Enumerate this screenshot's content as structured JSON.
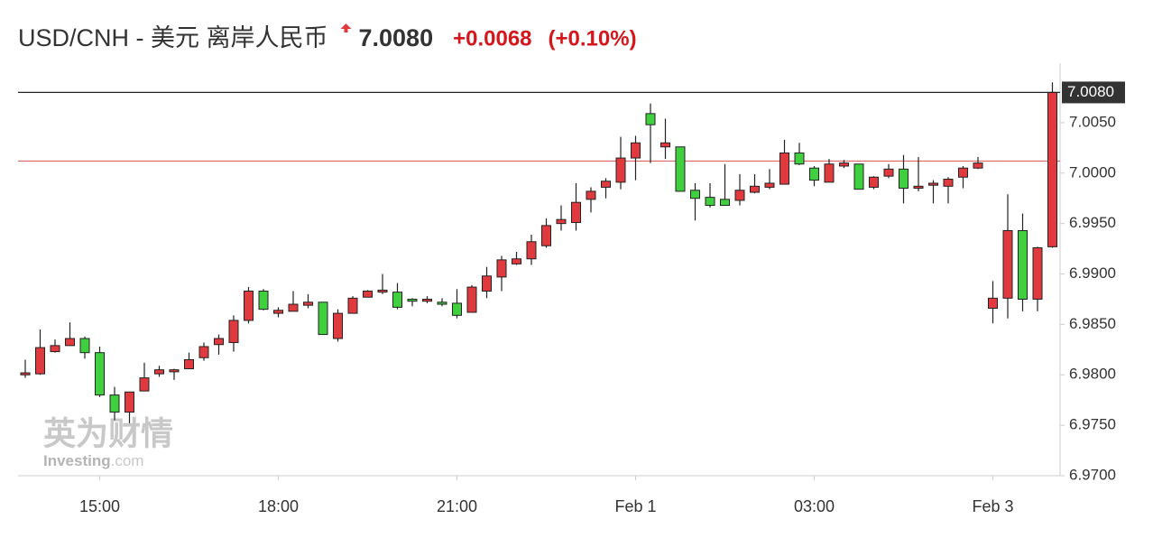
{
  "chart_data": {
    "type": "candlestick",
    "title": "USD/CNH - 美元 离岸人民币",
    "price": {
      "value": 7.008,
      "label": "7.0080"
    },
    "change": "+0.0068",
    "change_percent": "(+0.10%)",
    "watermark": [
      "英为财情",
      "Investing",
      ".com"
    ],
    "up_color": "#e0393e",
    "down_color": "#3fcf3f",
    "reference_line": 7.0012,
    "categories": [
      null,
      null,
      null,
      null,
      null,
      "15:00",
      null,
      null,
      null,
      null,
      null,
      null,
      null,
      null,
      null,
      null,
      null,
      "18:00",
      null,
      null,
      null,
      null,
      null,
      null,
      null,
      null,
      null,
      null,
      null,
      "21:00",
      null,
      null,
      null,
      null,
      null,
      null,
      null,
      null,
      null,
      null,
      null,
      "Feb 1",
      null,
      null,
      null,
      null,
      null,
      null,
      null,
      null,
      null,
      null,
      null,
      "03:00",
      null,
      null,
      null,
      null,
      null,
      null,
      null,
      null,
      null,
      null,
      null,
      "Feb 3",
      null,
      null,
      null,
      null
    ],
    "open": [
      6.98,
      6.9801,
      6.9823,
      6.9829,
      6.9836,
      6.9822,
      6.978,
      6.9763,
      6.9784,
      6.9801,
      6.9803,
      6.9806,
      6.9817,
      6.983,
      6.9832,
      6.9854,
      6.9883,
      6.9861,
      6.9863,
      6.9869,
      6.9872,
      6.9836,
      6.9861,
      6.9877,
      6.9882,
      6.9882,
      6.9875,
      6.9873,
      6.9872,
      6.9871,
      6.9862,
      6.9883,
      6.9897,
      6.991,
      6.9915,
      6.9928,
      6.995,
      6.9951,
      6.9974,
      6.9986,
      6.9991,
      7.0015,
      7.0059,
      7.0026,
      7.0026,
      6.9983,
      6.9976,
      6.9974,
      6.9973,
      6.9981,
      6.9986,
      6.9989,
      7.002,
      7.0005,
      6.9991,
      7.0007,
      7.0009,
      6.9986,
      6.9997,
      7.0004,
      6.9985,
      6.9988,
      6.9987,
      6.9996,
      7.0005,
      6.9866,
      6.9876,
      6.9943,
      6.9875,
      6.9927
    ],
    "high": [
      6.9815,
      6.9845,
      6.9835,
      6.9852,
      6.9838,
      6.9828,
      6.9788,
      6.9783,
      6.9812,
      6.9809,
      6.9806,
      6.9822,
      6.9832,
      6.984,
      6.9859,
      6.9887,
      6.9885,
      6.9867,
      6.9883,
      6.988,
      6.9872,
      6.9865,
      6.9878,
      6.9884,
      6.99,
      6.9891,
      6.9876,
      6.9878,
      6.9876,
      6.9885,
      6.9889,
      6.9907,
      6.9918,
      6.9922,
      6.9939,
      6.9955,
      6.9968,
      6.999,
      6.9986,
      6.9995,
      7.0036,
      7.0037,
      7.0069,
      7.0054,
      7.0026,
      6.999,
      6.999,
      7.0009,
      6.9999,
      6.9999,
      7.0004,
      7.0033,
      7.003,
      7.0007,
      7.0014,
      7.0013,
      7.0009,
      6.9997,
      7.0009,
      7.0018,
      7.0016,
      6.9993,
      6.9996,
      7.0007,
      7.0016,
      6.9893,
      6.9979,
      6.996,
      6.9927,
      7.009
    ],
    "low": [
      6.9797,
      6.98,
      6.9822,
      6.9829,
      6.9816,
      6.9778,
      6.9755,
      6.9752,
      6.9784,
      6.9798,
      6.9795,
      6.9806,
      6.9814,
      6.982,
      6.9823,
      6.9851,
      6.9864,
      6.9857,
      6.9863,
      6.9866,
      6.984,
      6.9833,
      6.9861,
      6.9877,
      6.988,
      6.9865,
      6.9868,
      6.9871,
      6.9868,
      6.9856,
      6.9862,
      6.9876,
      6.9883,
      6.9909,
      6.9909,
      6.9926,
      6.9943,
      6.9943,
      6.9961,
      6.9975,
      6.9984,
      6.9993,
      7.001,
      7.0014,
      6.9982,
      6.9953,
      6.9966,
      6.9968,
      6.9968,
      6.998,
      6.9984,
      6.9989,
      7.0008,
      6.9987,
      6.9991,
      7.0005,
      6.9984,
      6.9984,
      6.9995,
      6.997,
      6.9982,
      6.997,
      6.997,
      6.9985,
      7.0004,
      6.9851,
      6.9856,
      6.9863,
      6.9863,
      6.9926
    ],
    "close": [
      6.9802,
      6.9827,
      6.9829,
      6.9836,
      6.9822,
      6.978,
      6.9763,
      6.9783,
      6.9797,
      6.9805,
      6.9805,
      6.9815,
      6.9828,
      6.9836,
      6.9854,
      6.9883,
      6.9865,
      6.9864,
      6.987,
      6.9872,
      6.984,
      6.9861,
      6.9876,
      6.9883,
      6.9884,
      6.9867,
      6.9873,
      6.9875,
      6.987,
      6.9859,
      6.9887,
      6.9898,
      6.9914,
      6.9915,
      6.9932,
      6.9948,
      6.9954,
      6.9971,
      6.9982,
      6.9992,
      7.0015,
      7.003,
      7.0048,
      7.003,
      6.9982,
      6.9975,
      6.9968,
      6.9968,
      6.9983,
      6.9987,
      6.999,
      7.002,
      7.0009,
      6.9993,
      7.0009,
      7.001,
      6.9984,
      6.9996,
      7.0004,
      6.9985,
      6.9987,
      6.999,
      6.9994,
      7.0005,
      7.001,
      6.9876,
      6.9943,
      6.9875,
      6.9926,
      7.008
    ],
    "ylim": [
      6.97,
      7.0109
    ],
    "yticks": [
      {
        "value": 6.97,
        "label": "6.9700"
      },
      {
        "value": 6.975,
        "label": "6.9750"
      },
      {
        "value": 6.98,
        "label": "6.9800"
      },
      {
        "value": 6.985,
        "label": "6.9850"
      },
      {
        "value": 6.99,
        "label": "6.9900"
      },
      {
        "value": 6.995,
        "label": "6.9950"
      },
      {
        "value": 7.0,
        "label": "7.0000"
      },
      {
        "value": 7.005,
        "label": "7.0050"
      }
    ]
  }
}
